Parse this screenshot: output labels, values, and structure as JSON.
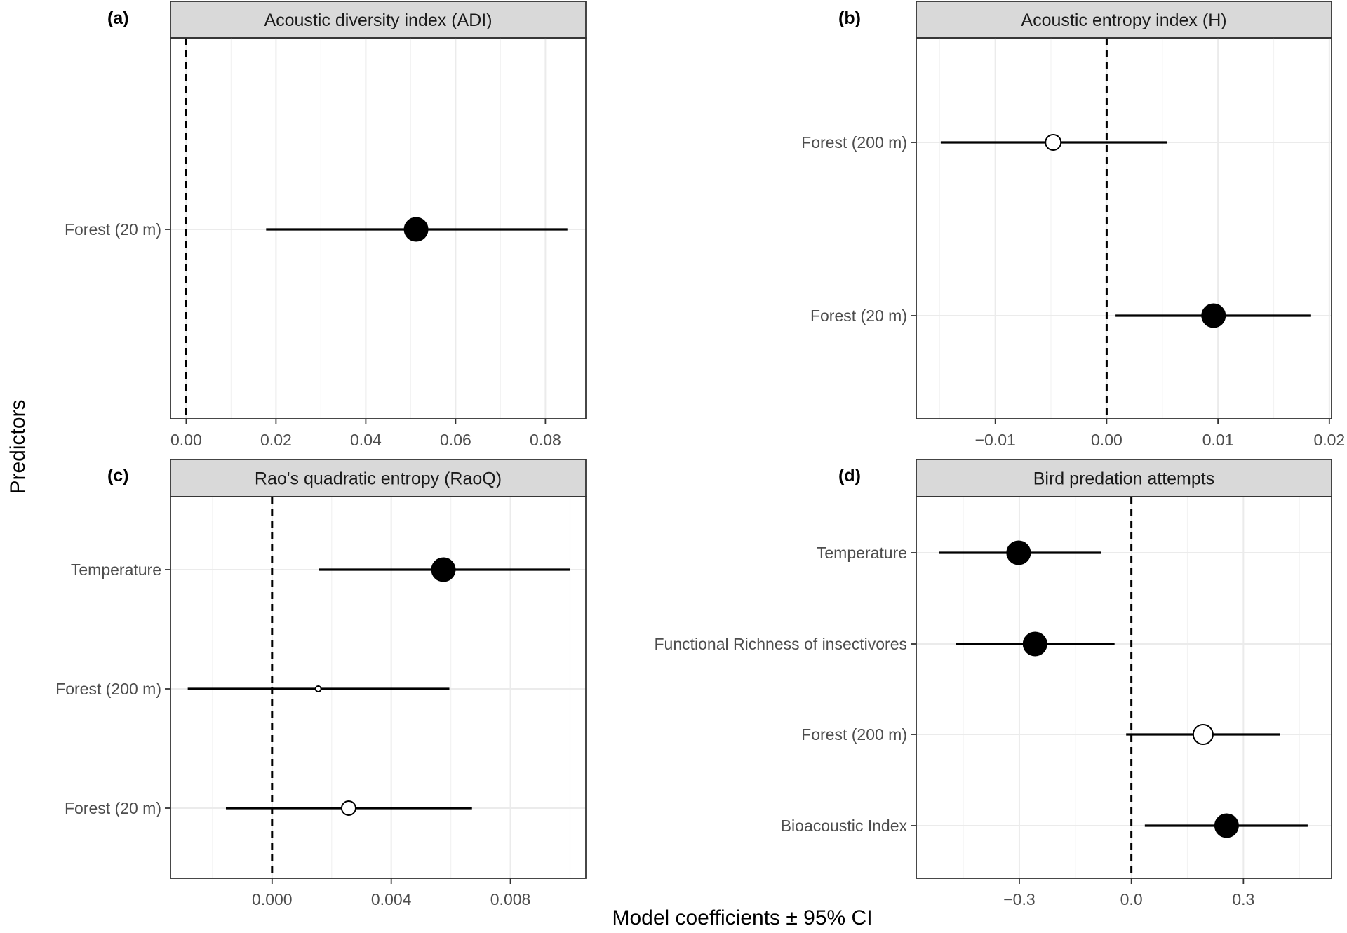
{
  "figure": {
    "xlabel": "Model coefficients ± 95% CI",
    "ylabel": "Predictors"
  },
  "chart_data": [
    {
      "type": "scatter",
      "panel": "(a)",
      "title": "Acoustic diversity index (ADI)",
      "xlim": [
        -0.0035,
        0.089
      ],
      "xticks": [
        0.0,
        0.02,
        0.04,
        0.06,
        0.08
      ],
      "xtick_labels": [
        "0.00",
        "0.02",
        "0.04",
        "0.06",
        "0.08"
      ],
      "xminor": [
        0.01,
        0.03,
        0.05,
        0.07
      ],
      "categories": [
        "Forest (20 m)"
      ],
      "points": [
        {
          "label": "Forest (20 m)",
          "estimate": 0.0512,
          "lower": 0.0178,
          "upper": 0.0849,
          "significant": true,
          "size": 17
        }
      ]
    },
    {
      "type": "scatter",
      "panel": "(b)",
      "title": "Acoustic entropy index (H)",
      "xlim": [
        -0.0171,
        0.0202
      ],
      "xticks": [
        -0.01,
        0.0,
        0.01,
        0.02
      ],
      "xtick_labels": [
        "−0.01",
        "0.00",
        "0.01",
        "0.02"
      ],
      "xminor": [
        -0.015,
        -0.005,
        0.005,
        0.015
      ],
      "categories": [
        "Forest (200 m)",
        "Forest (20 m)"
      ],
      "points": [
        {
          "label": "Forest (200 m)",
          "estimate": -0.0048,
          "lower": -0.0149,
          "upper": 0.0054,
          "significant": false,
          "size": 11
        },
        {
          "label": "Forest (20 m)",
          "estimate": 0.0096,
          "lower": 0.0008,
          "upper": 0.0183,
          "significant": true,
          "size": 17
        }
      ]
    },
    {
      "type": "scatter",
      "panel": "(c)",
      "title": "Rao's quadratic entropy (RaoQ)",
      "xlim": [
        -0.00341,
        0.01053
      ],
      "xticks": [
        0.0,
        0.004,
        0.008
      ],
      "xtick_labels": [
        "0.000",
        "0.004",
        "0.008"
      ],
      "xminor": [
        -0.002,
        0.002,
        0.006,
        0.01
      ],
      "categories": [
        "Temperature",
        "Forest (200 m)",
        "Forest (20 m)"
      ],
      "points": [
        {
          "label": "Temperature",
          "estimate": 0.00575,
          "lower": 0.00158,
          "upper": 0.00999,
          "significant": true,
          "size": 17
        },
        {
          "label": "Forest (200 m)",
          "estimate": 0.00155,
          "lower": -0.00283,
          "upper": 0.00595,
          "significant": false,
          "size": 4
        },
        {
          "label": "Forest (20 m)",
          "estimate": 0.00257,
          "lower": -0.00155,
          "upper": 0.00671,
          "significant": false,
          "size": 10
        }
      ]
    },
    {
      "type": "scatter",
      "panel": "(d)",
      "title": "Bird predation attempts",
      "xlim": [
        -0.576,
        0.536
      ],
      "xticks": [
        -0.3,
        0.0,
        0.3
      ],
      "xtick_labels": [
        "−0.3",
        "0.0",
        "0.3"
      ],
      "xminor": [
        -0.45,
        -0.15,
        0.15,
        0.45
      ],
      "categories": [
        "Temperature",
        "Functional Richness of insectivores",
        "Forest (200 m)",
        "Bioacoustic Index"
      ],
      "points": [
        {
          "label": "Temperature",
          "estimate": -0.302,
          "lower": -0.515,
          "upper": -0.081,
          "significant": true,
          "size": 17
        },
        {
          "label": "Functional Richness of insectivores",
          "estimate": -0.258,
          "lower": -0.469,
          "upper": -0.045,
          "significant": true,
          "size": 17
        },
        {
          "label": "Forest (200 m)",
          "estimate": 0.192,
          "lower": -0.014,
          "upper": 0.398,
          "significant": false,
          "size": 14
        },
        {
          "label": "Bioacoustic Index",
          "estimate": 0.255,
          "lower": 0.036,
          "upper": 0.472,
          "significant": true,
          "size": 17
        }
      ]
    }
  ]
}
